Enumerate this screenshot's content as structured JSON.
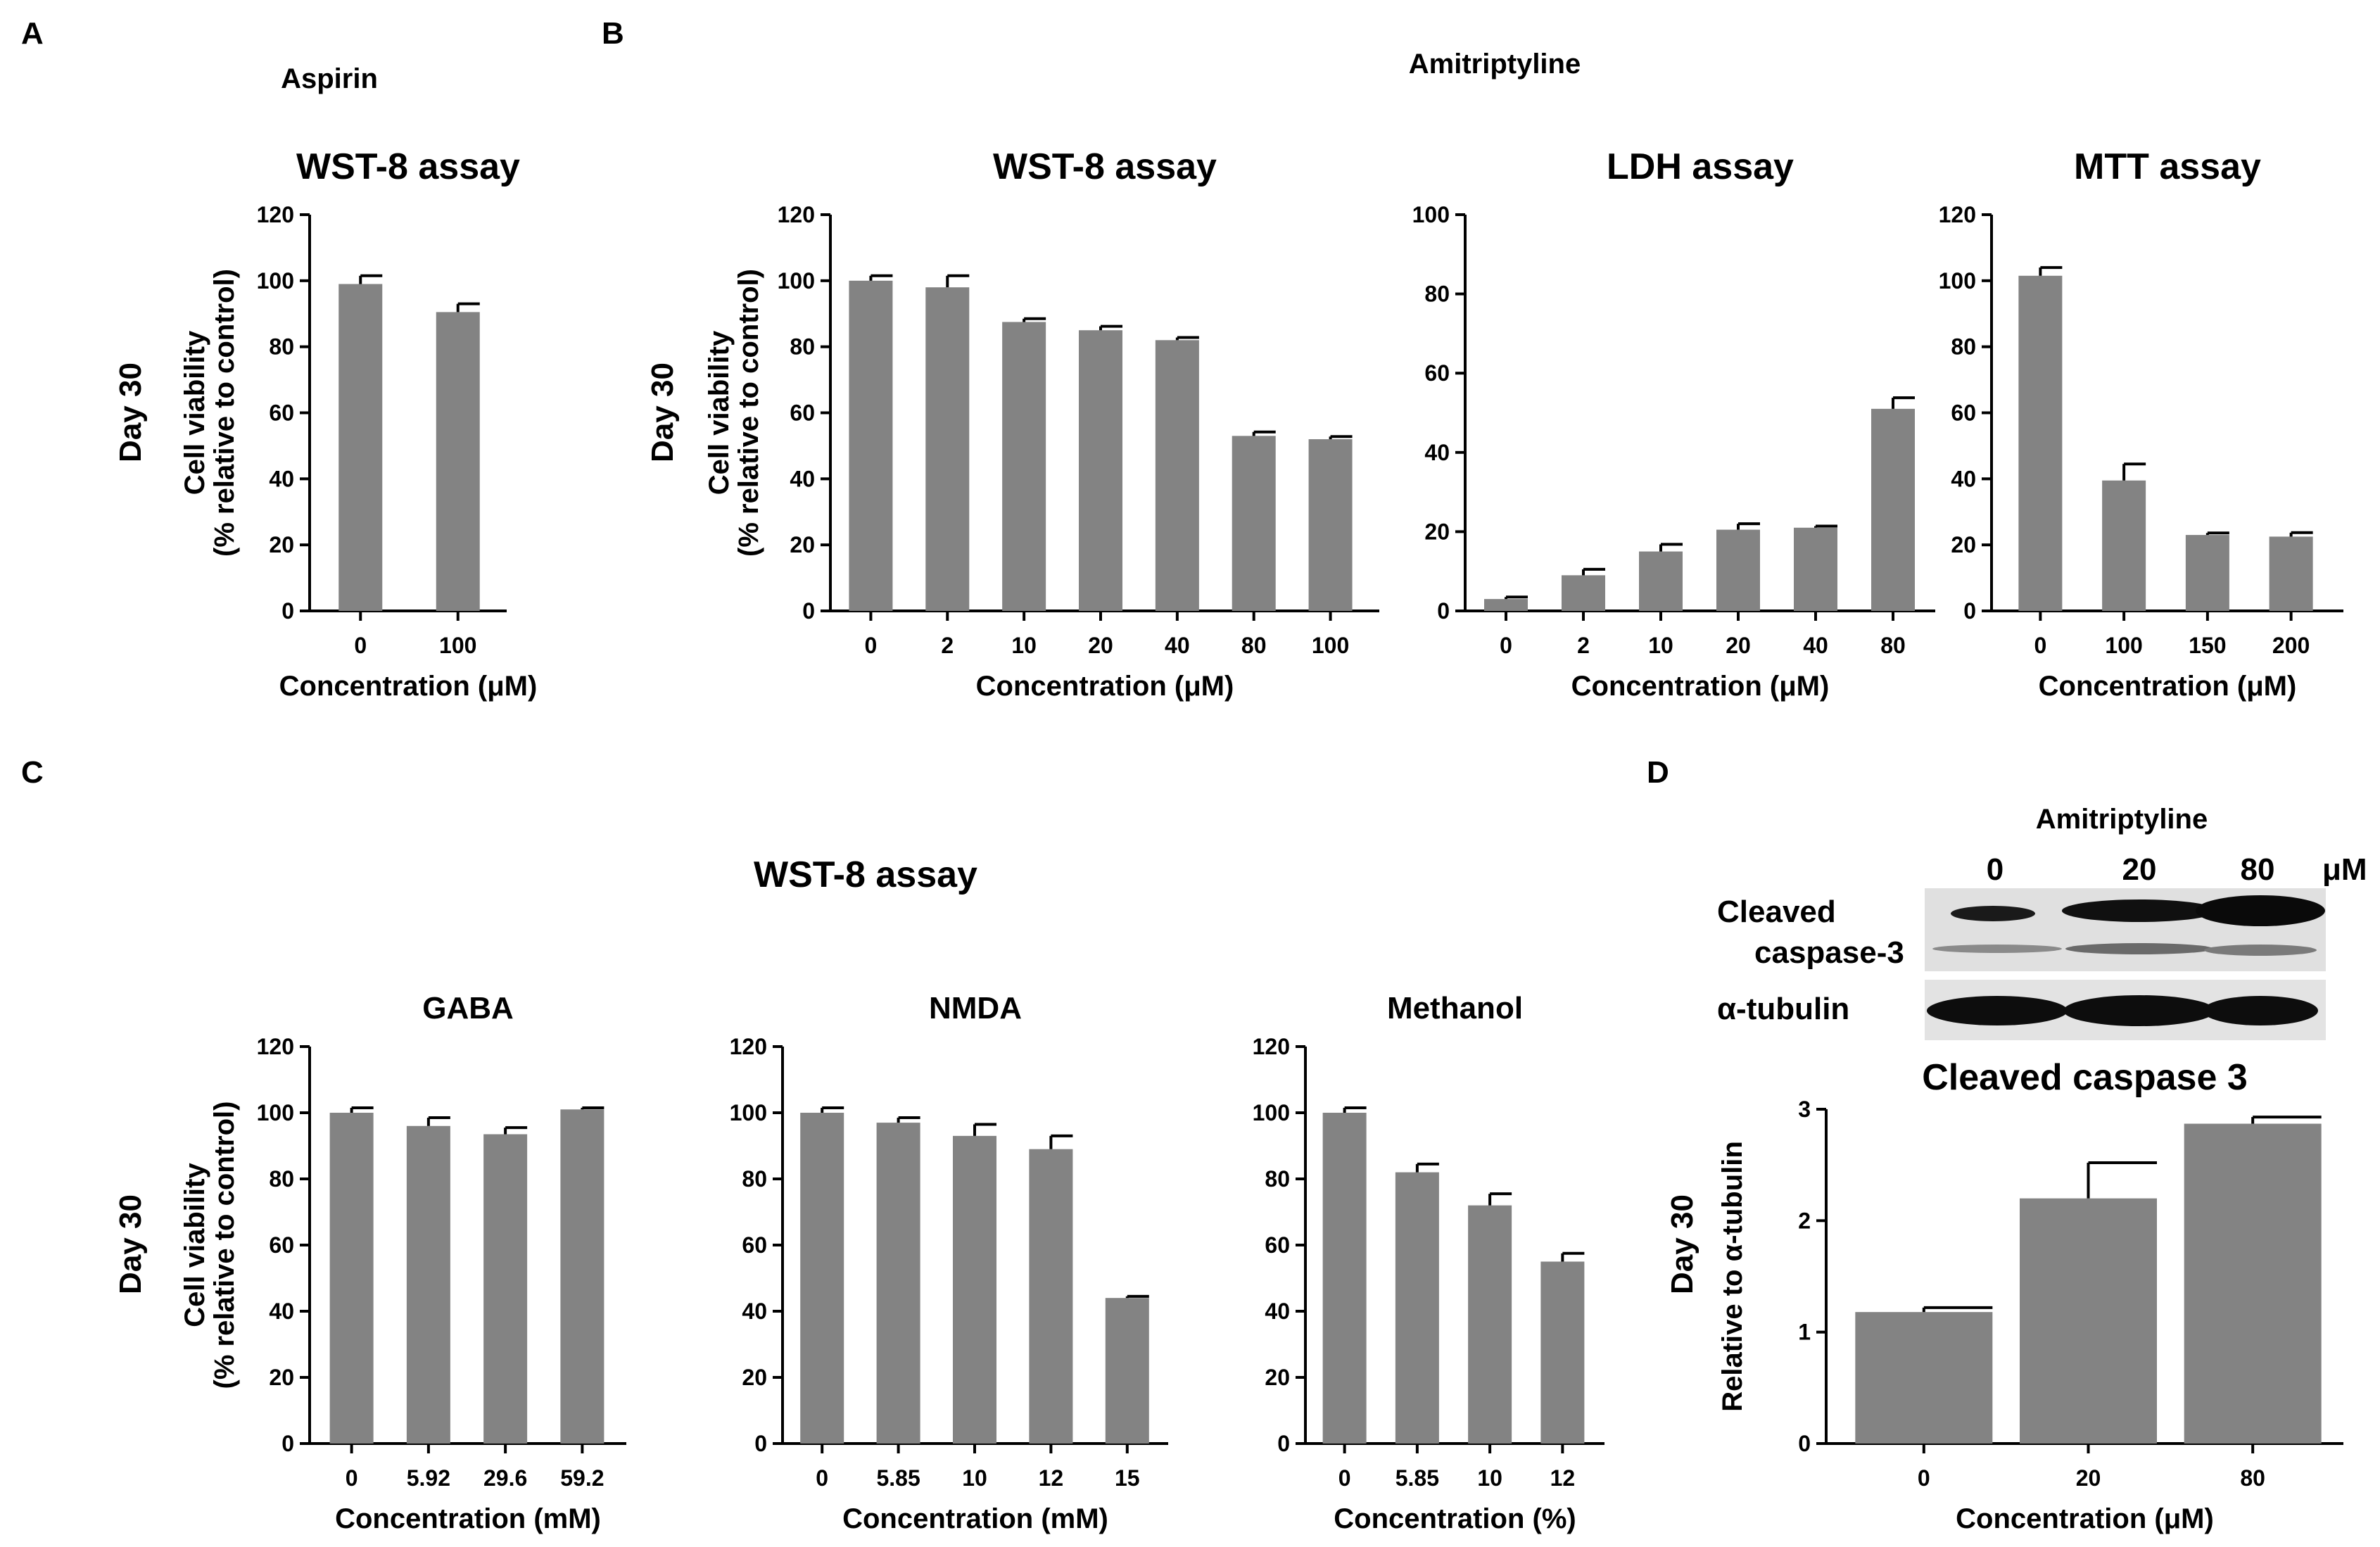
{
  "panels": {
    "A": "A",
    "B": "B",
    "C": "C",
    "D": "D"
  },
  "supertitles": {
    "aspirin": "Aspirin",
    "amitriptyline": "Amitriptyline",
    "wst8_c": "WST-8 assay"
  },
  "day_label": "Day 30",
  "blot": {
    "header": "Amitriptyline",
    "lanes": [
      "0",
      "20",
      "80"
    ],
    "unit": "μM",
    "row1_line1": "Cleaved",
    "row1_line2": "caspase-3",
    "row2": "α-tubulin"
  },
  "colors": {
    "bar": "#838383",
    "axis": "#000000",
    "blot_bg": "#dcdcdc",
    "band": "#111111"
  },
  "chart_data": [
    {
      "id": "A_wst8",
      "type": "bar",
      "title": "WST-8 assay",
      "categories": [
        "0",
        "100"
      ],
      "values": [
        99,
        90.5
      ],
      "errors": [
        2.5,
        2.5
      ],
      "xlabel": "Concentration (μM)",
      "ylabel_line1": "Cell viability",
      "ylabel_line2": "(% relative to control)",
      "ylim": [
        0,
        120
      ],
      "yticks": [
        "0",
        "20",
        "40",
        "60",
        "80",
        "100",
        "120"
      ]
    },
    {
      "id": "B_wst8",
      "type": "bar",
      "title": "WST-8 assay",
      "categories": [
        "0",
        "2",
        "10",
        "20",
        "40",
        "80",
        "100"
      ],
      "values": [
        100,
        98,
        87.5,
        85,
        82,
        53,
        52
      ],
      "errors": [
        1.5,
        3.5,
        1,
        1.2,
        0.8,
        1.2,
        0.8
      ],
      "xlabel": "Concentration (μM)",
      "ylabel_line1": "Cell viability",
      "ylabel_line2": "(% relative to control)",
      "ylim": [
        0,
        120
      ],
      "yticks": [
        "0",
        "20",
        "40",
        "60",
        "80",
        "100",
        "120"
      ]
    },
    {
      "id": "B_ldh",
      "type": "bar",
      "title": "LDH assay",
      "categories": [
        "0",
        "2",
        "10",
        "20",
        "40",
        "80"
      ],
      "values": [
        3,
        9,
        15,
        20.5,
        21,
        51
      ],
      "errors": [
        0.5,
        1.5,
        1.8,
        1.5,
        0.4,
        2.8
      ],
      "xlabel": "Concentration (μM)",
      "ylim": [
        0,
        100
      ],
      "yticks": [
        "0",
        "20",
        "40",
        "60",
        "80",
        "100"
      ]
    },
    {
      "id": "B_mtt",
      "type": "bar",
      "title": "MTT assay",
      "categories": [
        "0",
        "100",
        "150",
        "200"
      ],
      "values": [
        101.5,
        39.5,
        23,
        22.5
      ],
      "errors": [
        2.5,
        5,
        0.6,
        1.2
      ],
      "xlabel": "Concentration (μM)",
      "ylim": [
        0,
        120
      ],
      "yticks": [
        "0",
        "20",
        "40",
        "60",
        "80",
        "100",
        "120"
      ]
    },
    {
      "id": "C_gaba",
      "type": "bar",
      "title": "GABA",
      "categories": [
        "0",
        "5.92",
        "29.6",
        "59.2"
      ],
      "values": [
        100,
        96,
        93.5,
        101
      ],
      "errors": [
        1.5,
        2.5,
        2,
        0.5
      ],
      "xlabel": "Concentration (mM)",
      "ylabel_line1": "Cell viability",
      "ylabel_line2": "(% relative to control)",
      "ylim": [
        0,
        120
      ],
      "yticks": [
        "0",
        "20",
        "40",
        "60",
        "80",
        "100",
        "120"
      ]
    },
    {
      "id": "C_nmda",
      "type": "bar",
      "title": "NMDA",
      "categories": [
        "0",
        "5.85",
        "10",
        "12",
        "15"
      ],
      "values": [
        100,
        97,
        93,
        89,
        44
      ],
      "errors": [
        1.5,
        1.5,
        3.5,
        4,
        0.5
      ],
      "xlabel": "Concentration (mM)",
      "ylim": [
        0,
        120
      ],
      "yticks": [
        "0",
        "20",
        "40",
        "60",
        "80",
        "100",
        "120"
      ]
    },
    {
      "id": "C_methanol",
      "type": "bar",
      "title": "Methanol",
      "categories": [
        "0",
        "5.85",
        "10",
        "12"
      ],
      "values": [
        100,
        82,
        72,
        55
      ],
      "errors": [
        1.5,
        2.5,
        3.5,
        2.5
      ],
      "xlabel": "Concentration (%)",
      "ylim": [
        0,
        120
      ],
      "yticks": [
        "0",
        "20",
        "40",
        "60",
        "80",
        "100",
        "120"
      ]
    },
    {
      "id": "D_caspase",
      "type": "bar",
      "title": "Cleaved caspase 3",
      "categories": [
        "0",
        "20",
        "80"
      ],
      "values": [
        1.18,
        2.2,
        2.87
      ],
      "errors": [
        0.04,
        0.32,
        0.06
      ],
      "xlabel": "Concentration (μM)",
      "ylabel_line1": "Relative to α-tubulin",
      "ylim": [
        0,
        3
      ],
      "yticks": [
        "0",
        "1",
        "2",
        "3"
      ]
    }
  ]
}
